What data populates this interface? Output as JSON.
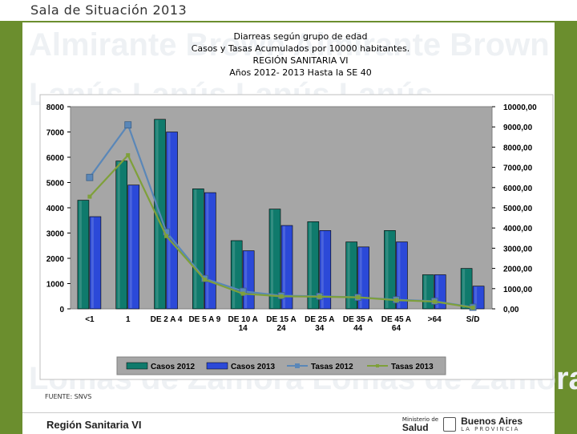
{
  "header": {
    "title": "Sala de Situación 2013"
  },
  "watermark": {
    "line1": "Almirante Brown  Almirante Brown",
    "line2": "Lanús  Lanús  Lanús  Lanús",
    "line3": "Lomas de Zamora  Lomas de Zamora"
  },
  "chart_data": {
    "type": "bar",
    "title_lines": [
      "Diarreas según grupo de edad",
      "Casos y Tasas Acumulados por 10000 habitantes.",
      "REGIÓN SANITARIA VI",
      "Años 2012- 2013 Hasta la  SE 40"
    ],
    "categories": [
      [
        "<1"
      ],
      [
        "1"
      ],
      [
        "DE 2 A 4"
      ],
      [
        "DE 5 A 9"
      ],
      [
        "DE 10 A",
        "14"
      ],
      [
        "DE 15 A",
        "24"
      ],
      [
        "DE 25 A",
        "34"
      ],
      [
        "DE 35 A",
        "44"
      ],
      [
        "DE 45 A",
        "64"
      ],
      [
        ">64"
      ],
      [
        "S/D"
      ]
    ],
    "y_left": {
      "min": 0,
      "max": 8000,
      "ticks": [
        "0",
        "1000",
        "2000",
        "3000",
        "4000",
        "5000",
        "6000",
        "7000",
        "8000"
      ]
    },
    "y_right": {
      "min": 0,
      "max": 10000,
      "ticks": [
        "0,00",
        "1000,00",
        "2000,00",
        "3000,00",
        "4000,00",
        "5000,00",
        "6000,00",
        "7000,00",
        "8000,00",
        "9000,00",
        "10000,00"
      ]
    },
    "bars": [
      {
        "name": "Casos 2012",
        "color": "#0f7a6c",
        "values": [
          4300,
          5850,
          7500,
          4750,
          2700,
          3950,
          3450,
          2650,
          3100,
          1350,
          1600
        ]
      },
      {
        "name": "Casos 2013",
        "color": "#2b49d8",
        "values": [
          3650,
          4900,
          7000,
          4600,
          2300,
          3300,
          3100,
          2450,
          2650,
          1350,
          900
        ]
      }
    ],
    "lines": [
      {
        "name": "Tasas 2012",
        "color": "#5a87b8",
        "marker": "square",
        "values": [
          6500,
          9100,
          3800,
          1500,
          870,
          650,
          620,
          570,
          450,
          380,
          80
        ]
      },
      {
        "name": "Tasas 2013",
        "color": "#7fa03a",
        "marker": "small-square",
        "values": [
          5550,
          7600,
          3600,
          1450,
          750,
          620,
          600,
          570,
          430,
          360,
          60
        ]
      }
    ],
    "legend": [
      "Casos 2012",
      "Casos 2013",
      "Tasas 2012",
      "Tasas 2013"
    ]
  },
  "source": "FUENTE: SNVS",
  "footer": {
    "left": "Región Sanitaria VI",
    "ministry_line1": "Ministerio de",
    "ministry_line2": "Salud",
    "brand": "Buenos Aires",
    "brand_sub": "LA PROVINCIA"
  }
}
